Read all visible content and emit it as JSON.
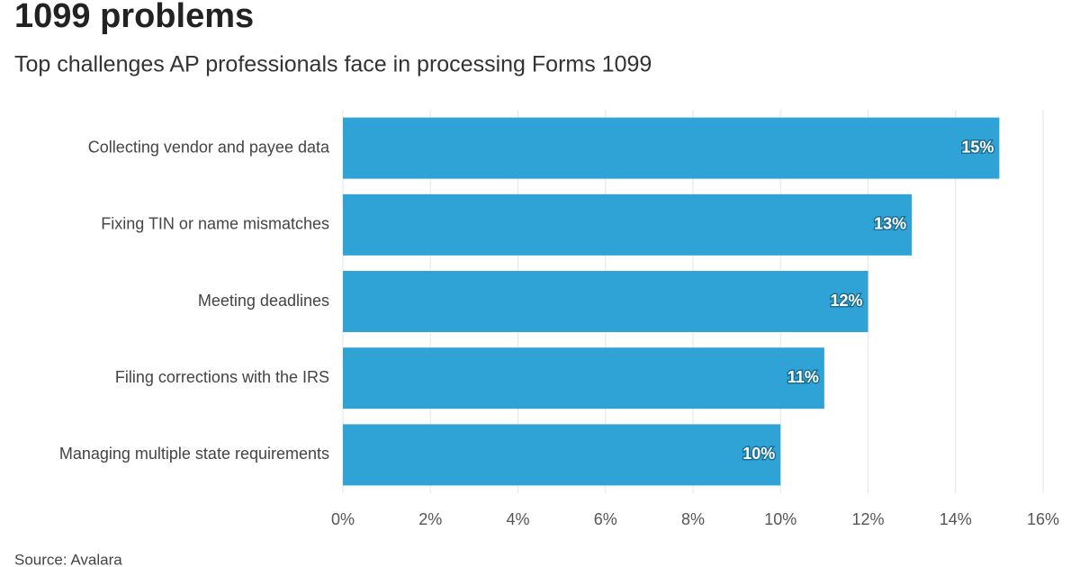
{
  "chart_data": {
    "type": "bar",
    "orientation": "horizontal",
    "title": "1099 problems",
    "subtitle": "Top challenges AP professionals face in processing Forms 1099",
    "categories": [
      "Collecting vendor and payee data",
      "Fixing TIN or name mismatches",
      "Meeting deadlines",
      "Filing corrections with the IRS",
      "Managing multiple state requirements"
    ],
    "values": [
      15,
      13,
      12,
      11,
      10
    ],
    "value_labels": [
      "15%",
      "13%",
      "12%",
      "11%",
      "10%"
    ],
    "color": "#2fa3d6",
    "xlim": [
      0,
      16
    ],
    "xticks": [
      {
        "value": 0,
        "label": "0%"
      },
      {
        "value": 2,
        "label": "2%"
      },
      {
        "value": 4,
        "label": "4%"
      },
      {
        "value": 6,
        "label": "6%"
      },
      {
        "value": 8,
        "label": "8%"
      },
      {
        "value": 10,
        "label": "10%"
      },
      {
        "value": 12,
        "label": "12%"
      },
      {
        "value": 14,
        "label": "14%"
      },
      {
        "value": 16,
        "label": "16%"
      }
    ],
    "grid": true,
    "source": "Source: Avalara"
  }
}
